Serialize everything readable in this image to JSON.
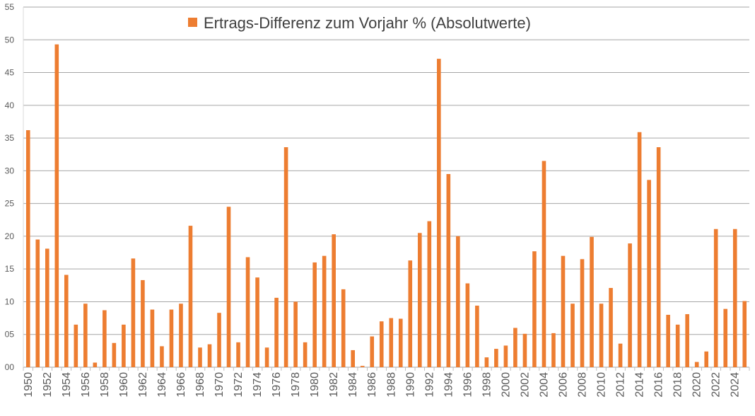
{
  "chart_data": {
    "type": "bar",
    "title": "",
    "legend": {
      "position": "top-center",
      "entries": [
        "Ertrags-Differenz zum Vorjahr % (Absolutwerte)"
      ]
    },
    "xlabel": "",
    "ylabel": "",
    "ylim": [
      0,
      55
    ],
    "y_ticks": [
      "00",
      "05",
      "10",
      "15",
      "20",
      "25",
      "30",
      "35",
      "40",
      "45",
      "50",
      "55"
    ],
    "grid": "horizontal",
    "colors": {
      "bar": "#ED7D31",
      "grid": "#A6A6A6",
      "axis_text": "#595959"
    },
    "x_tick_labels": [
      "1950",
      "1952",
      "1954",
      "1956",
      "1958",
      "1960",
      "1962",
      "1964",
      "1966",
      "1968",
      "1970",
      "1972",
      "1974",
      "1976",
      "1978",
      "1980",
      "1982",
      "1984",
      "1986",
      "1988",
      "1990",
      "1992",
      "1994",
      "1996",
      "1998",
      "2000",
      "2002",
      "2004",
      "2006",
      "2008",
      "2010",
      "2012",
      "2014",
      "2016",
      "2018",
      "2020",
      "2022",
      "2024"
    ],
    "categories": [
      1950,
      1951,
      1952,
      1953,
      1954,
      1955,
      1956,
      1957,
      1958,
      1959,
      1960,
      1961,
      1962,
      1963,
      1964,
      1965,
      1966,
      1967,
      1968,
      1969,
      1970,
      1971,
      1972,
      1973,
      1974,
      1975,
      1976,
      1977,
      1978,
      1979,
      1980,
      1981,
      1982,
      1983,
      1984,
      1985,
      1986,
      1987,
      1988,
      1989,
      1990,
      1991,
      1992,
      1993,
      1994,
      1995,
      1996,
      1997,
      1998,
      1999,
      2000,
      2001,
      2002,
      2003,
      2004,
      2005,
      2006,
      2007,
      2008,
      2009,
      2010,
      2011,
      2012,
      2013,
      2014,
      2015,
      2016,
      2017,
      2018,
      2019,
      2020,
      2021,
      2022,
      2023,
      2024,
      2025
    ],
    "series": [
      {
        "name": "Ertrags-Differenz zum Vorjahr % (Absolutwerte)",
        "values": [
          36.2,
          19.5,
          18.1,
          49.3,
          14.1,
          6.5,
          9.7,
          0.7,
          8.7,
          3.7,
          6.5,
          16.6,
          13.3,
          8.8,
          3.2,
          8.8,
          9.7,
          21.6,
          3.0,
          3.5,
          8.3,
          24.5,
          3.8,
          16.8,
          13.7,
          3.0,
          10.6,
          33.6,
          10.0,
          3.8,
          16.0,
          17.0,
          20.3,
          11.9,
          2.6,
          0.2,
          4.7,
          7.0,
          7.5,
          7.4,
          16.3,
          20.5,
          22.3,
          47.1,
          29.5,
          20.0,
          12.8,
          9.4,
          1.5,
          2.8,
          3.3,
          6.0,
          5.1,
          17.7,
          31.5,
          5.2,
          17.0,
          9.7,
          16.5,
          19.9,
          9.7,
          12.1,
          3.6,
          18.9,
          35.9,
          28.6,
          33.6,
          8.0,
          6.5,
          8.1,
          0.8,
          2.4,
          21.1,
          8.9,
          21.1,
          10.1
        ]
      }
    ]
  }
}
